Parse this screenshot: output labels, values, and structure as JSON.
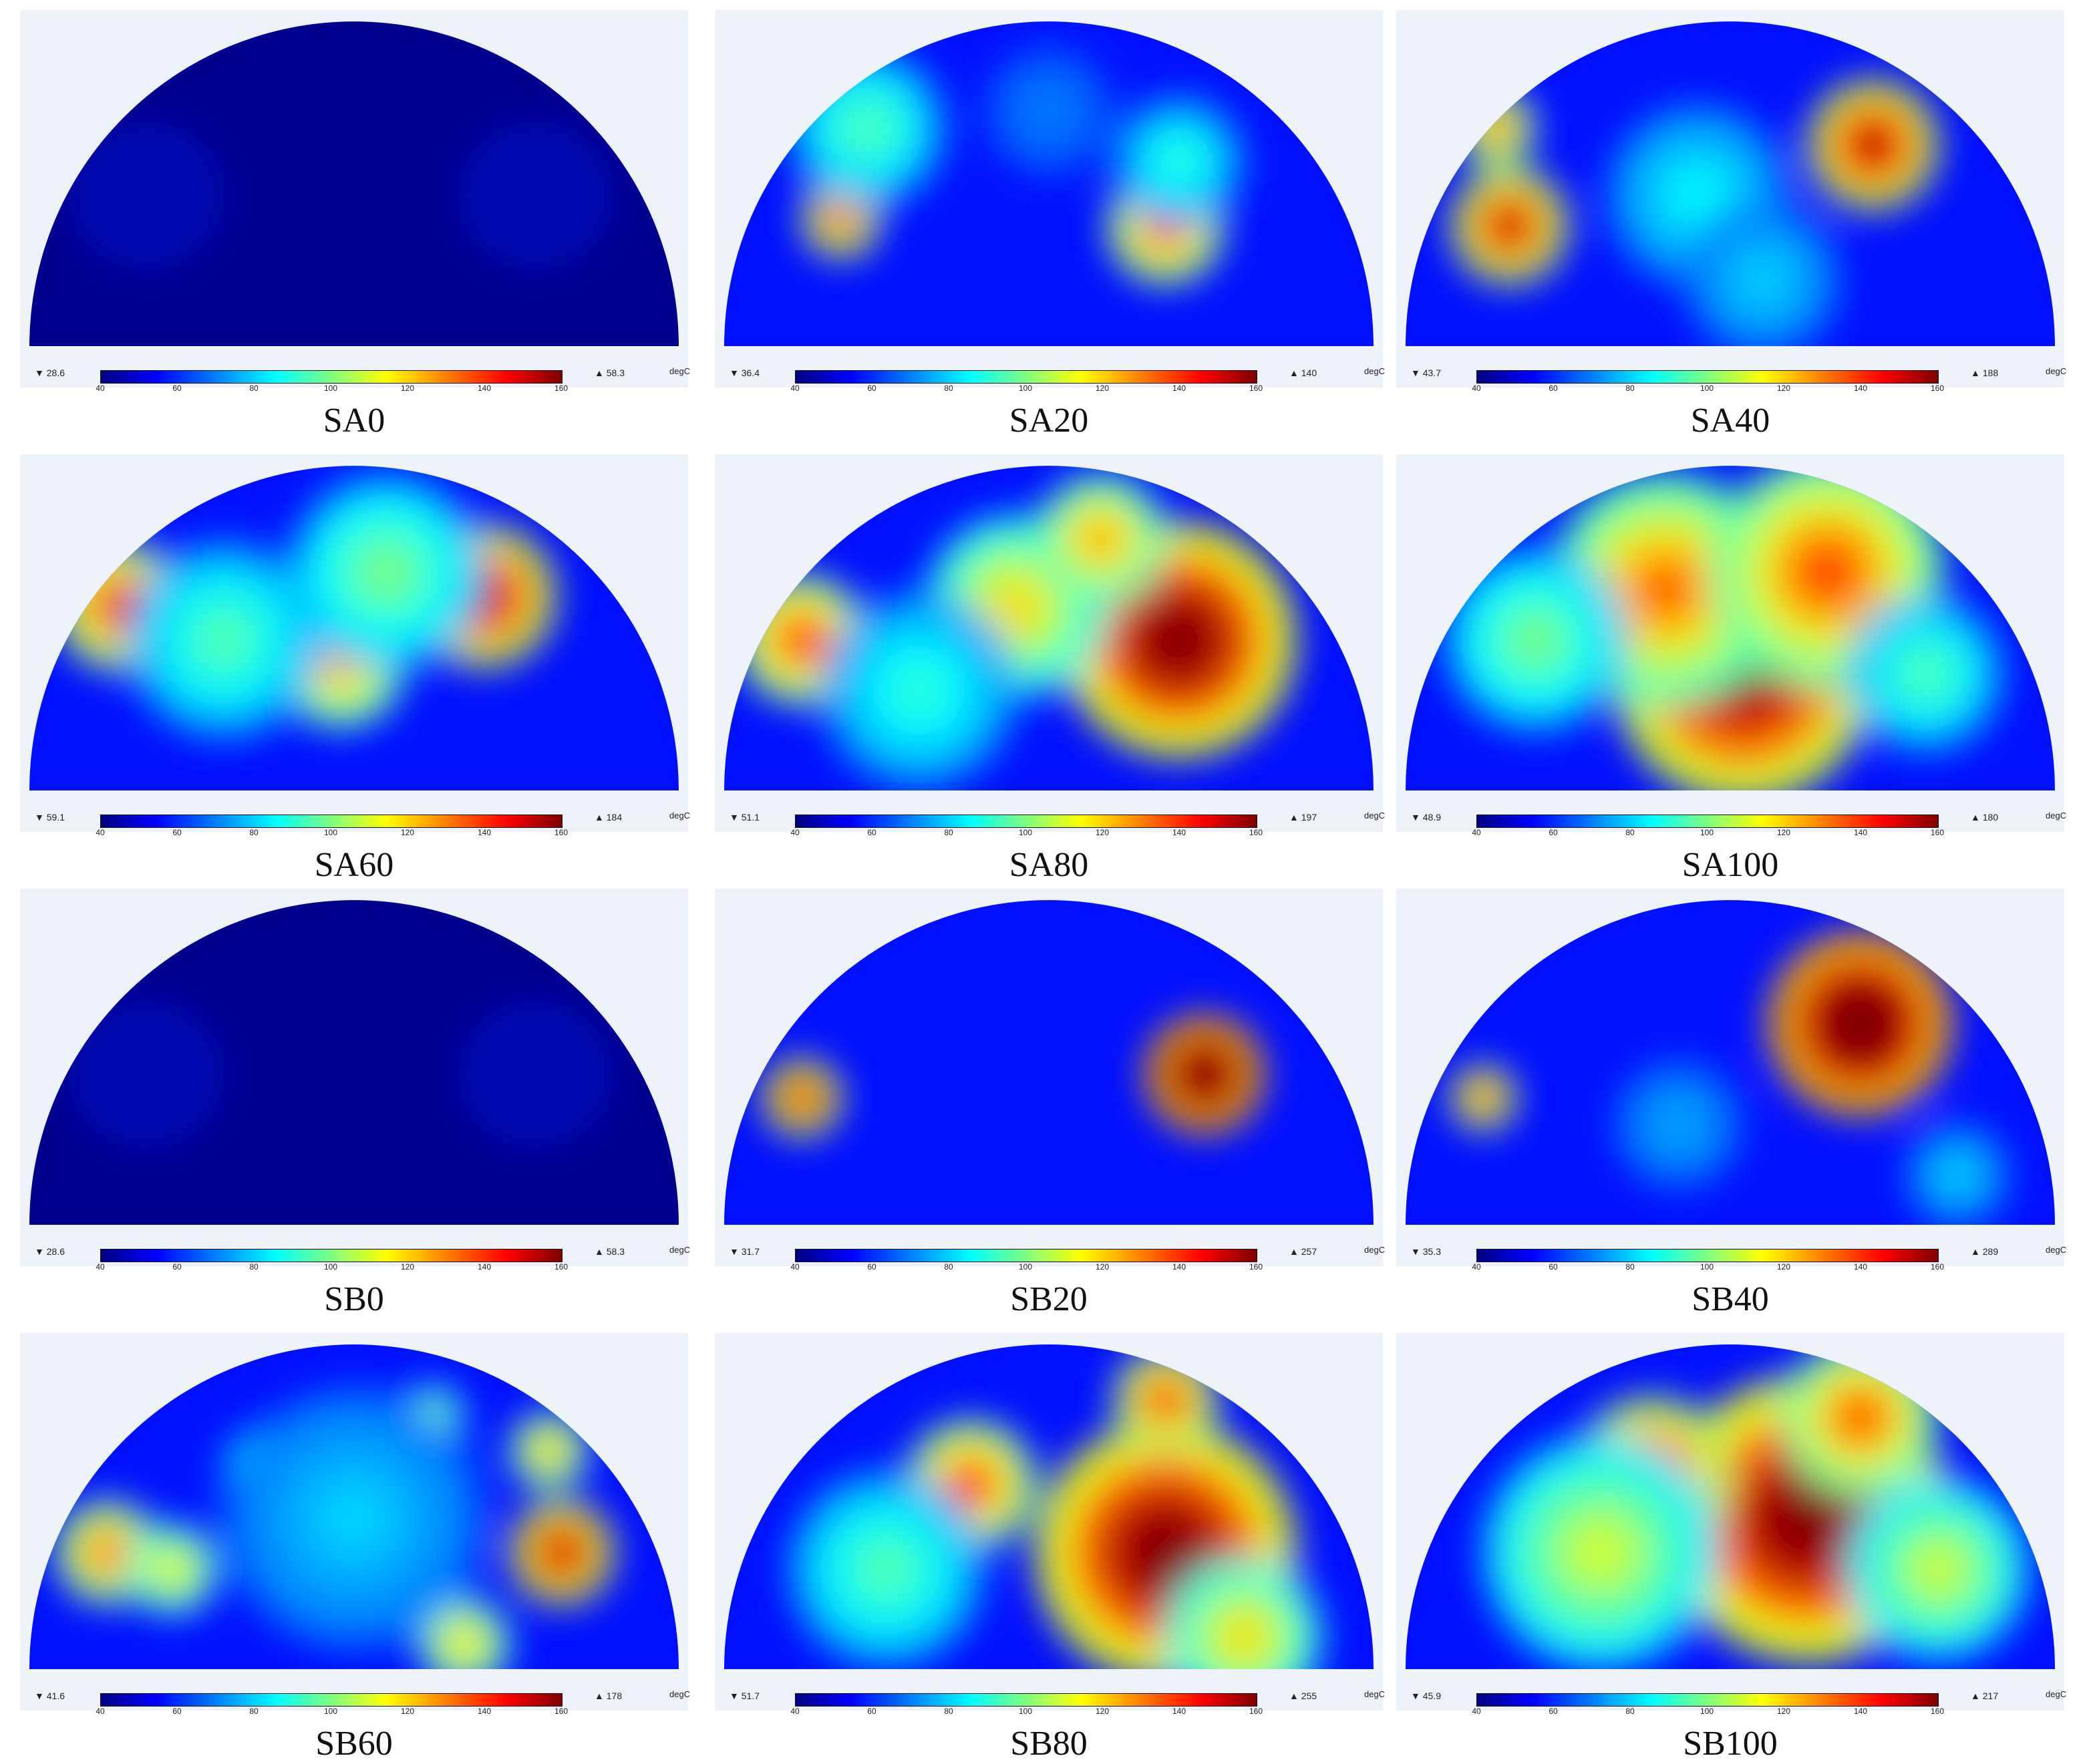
{
  "colorbar": {
    "unit": "degC",
    "ticks": [
      "40",
      "60",
      "80",
      "100",
      "120",
      "140",
      "160"
    ],
    "range": [
      40,
      160
    ]
  },
  "panels": [
    {
      "label": "SA0",
      "min": "▼ 28.6",
      "max": "▲ 58.3",
      "hotspots": []
    },
    {
      "label": "SA20",
      "min": "▼ 36.4",
      "max": "▲ 140",
      "hotspots": [
        [
          0.18,
          0.62,
          0.06,
          150
        ],
        [
          0.68,
          0.64,
          0.09,
          145
        ],
        [
          0.22,
          0.35,
          0.12,
          95
        ],
        [
          0.7,
          0.45,
          0.1,
          90
        ],
        [
          0.5,
          0.3,
          0.1,
          70
        ]
      ]
    },
    {
      "label": "SA40",
      "min": "▼ 43.7",
      "max": "▲ 188",
      "hotspots": [
        [
          0.16,
          0.64,
          0.09,
          160
        ],
        [
          0.72,
          0.4,
          0.1,
          165
        ],
        [
          0.14,
          0.35,
          0.06,
          140
        ],
        [
          0.45,
          0.55,
          0.14,
          85
        ],
        [
          0.55,
          0.8,
          0.12,
          80
        ]
      ]
    },
    {
      "label": "SA60",
      "min": "▼ 59.1",
      "max": "▲ 184",
      "hotspots": [
        [
          0.14,
          0.45,
          0.1,
          150
        ],
        [
          0.7,
          0.42,
          0.11,
          165
        ],
        [
          0.48,
          0.62,
          0.1,
          130
        ],
        [
          0.3,
          0.55,
          0.15,
          95
        ],
        [
          0.55,
          0.35,
          0.15,
          100
        ]
      ]
    },
    {
      "label": "SA80",
      "min": "▼ 51.1",
      "max": "▲ 197",
      "hotspots": [
        [
          0.7,
          0.55,
          0.18,
          175
        ],
        [
          0.12,
          0.55,
          0.1,
          145
        ],
        [
          0.45,
          0.45,
          0.14,
          120
        ],
        [
          0.58,
          0.25,
          0.1,
          130
        ],
        [
          0.3,
          0.7,
          0.15,
          90
        ]
      ]
    },
    {
      "label": "SA100",
      "min": "▼ 48.9",
      "max": "▲ 180",
      "hotspots": [
        [
          0.52,
          0.65,
          0.2,
          170
        ],
        [
          0.4,
          0.4,
          0.18,
          135
        ],
        [
          0.65,
          0.35,
          0.18,
          140
        ],
        [
          0.2,
          0.55,
          0.14,
          100
        ],
        [
          0.8,
          0.65,
          0.12,
          95
        ]
      ]
    },
    {
      "label": "SB0",
      "min": "▼ 28.6",
      "max": "▲ 58.3",
      "hotspots": []
    },
    {
      "label": "SB20",
      "min": "▼ 31.7",
      "max": "▲ 257",
      "hotspots": [
        [
          0.74,
          0.55,
          0.09,
          200
        ],
        [
          0.12,
          0.62,
          0.06,
          160
        ]
      ]
    },
    {
      "label": "SB40",
      "min": "▼ 35.3",
      "max": "▲ 289",
      "hotspots": [
        [
          0.7,
          0.4,
          0.14,
          200
        ],
        [
          0.12,
          0.62,
          0.05,
          150
        ],
        [
          0.42,
          0.7,
          0.1,
          75
        ],
        [
          0.85,
          0.85,
          0.08,
          80
        ]
      ]
    },
    {
      "label": "SB60",
      "min": "▼ 41.6",
      "max": "▲ 178",
      "hotspots": [
        [
          0.82,
          0.65,
          0.08,
          165
        ],
        [
          0.12,
          0.65,
          0.08,
          140
        ],
        [
          0.22,
          0.7,
          0.07,
          120
        ],
        [
          0.38,
          0.42,
          0.08,
          120
        ],
        [
          0.62,
          0.25,
          0.05,
          110
        ],
        [
          0.67,
          0.92,
          0.07,
          125
        ],
        [
          0.8,
          0.35,
          0.06,
          130
        ],
        [
          0.5,
          0.55,
          0.2,
          80
        ]
      ]
    },
    {
      "label": "SB80",
      "min": "▼ 51.7",
      "max": "▲ 255",
      "hotspots": [
        [
          0.68,
          0.65,
          0.2,
          175
        ],
        [
          0.38,
          0.45,
          0.1,
          145
        ],
        [
          0.68,
          0.2,
          0.08,
          150
        ],
        [
          0.25,
          0.7,
          0.15,
          95
        ],
        [
          0.8,
          0.9,
          0.12,
          120
        ]
      ]
    },
    {
      "label": "SB100",
      "min": "▼ 45.9",
      "max": "▲ 217",
      "hotspots": [
        [
          0.62,
          0.55,
          0.22,
          175
        ],
        [
          0.38,
          0.42,
          0.12,
          155
        ],
        [
          0.3,
          0.65,
          0.18,
          110
        ],
        [
          0.7,
          0.25,
          0.12,
          140
        ],
        [
          0.82,
          0.7,
          0.14,
          110
        ]
      ]
    }
  ]
}
